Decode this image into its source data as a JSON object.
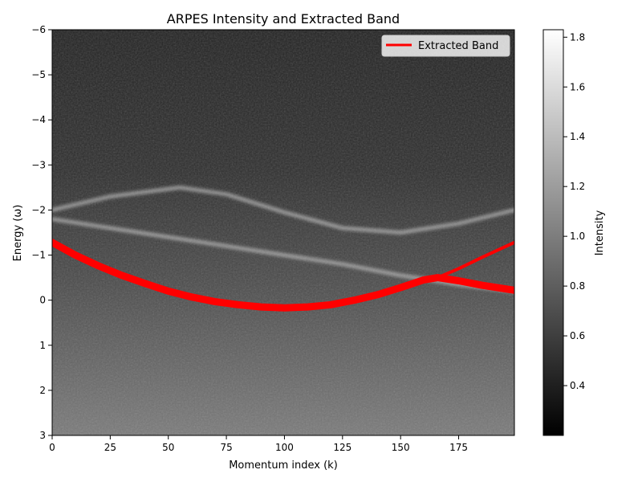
{
  "chart_data": {
    "type": "heatmap",
    "title": "ARPES Intensity and Extracted Band",
    "xlabel": "Momentum index (k)",
    "ylabel": "Energy (ω)",
    "xlim": [
      0,
      199
    ],
    "ylim": [
      -6,
      3
    ],
    "y_inverted": true,
    "x_ticks": [
      0,
      25,
      50,
      75,
      100,
      125,
      150,
      175
    ],
    "x_tick_labels": [
      "0",
      "25",
      "50",
      "75",
      "100",
      "125",
      "150",
      "175"
    ],
    "y_ticks": [
      -6,
      -5,
      -4,
      -3,
      -2,
      -1,
      0,
      1,
      2,
      3
    ],
    "y_tick_labels": [
      "−6",
      "−5",
      "−4",
      "−3",
      "−2",
      "−1",
      "0",
      "1",
      "2",
      "3"
    ],
    "grid": false,
    "colormap": "gray",
    "colorbar": {
      "label": "Intensity",
      "range": [
        0.2,
        1.83
      ],
      "ticks": [
        0.4,
        0.6,
        0.8,
        1.0,
        1.2,
        1.4,
        1.6,
        1.8
      ],
      "tick_labels": [
        "0.4",
        "0.6",
        "0.8",
        "1.0",
        "1.2",
        "1.4",
        "1.6",
        "1.8"
      ]
    },
    "bright_bands": [
      {
        "x": [
          0,
          25,
          55,
          75,
          100,
          125,
          150,
          175,
          199
        ],
        "y": [
          -2.0,
          -2.3,
          -2.5,
          -2.35,
          -1.95,
          -1.6,
          -1.5,
          -1.7,
          -2.0
        ]
      },
      {
        "x": [
          0,
          25,
          50,
          75,
          100,
          125,
          150,
          175,
          199
        ],
        "y": [
          -1.8,
          -1.6,
          -1.4,
          -1.2,
          -1.0,
          -0.8,
          -0.55,
          -0.35,
          -0.2
        ]
      }
    ],
    "series": [
      {
        "name": "Extracted Band",
        "color": "#ff0000",
        "x": [
          0,
          10,
          20,
          30,
          40,
          50,
          60,
          70,
          80,
          90,
          100,
          110,
          120,
          130,
          140,
          150,
          160,
          166,
          175,
          185,
          199
        ],
        "y": [
          -1.28,
          -1.0,
          -0.76,
          -0.55,
          -0.37,
          -0.2,
          -0.07,
          0.03,
          0.1,
          0.15,
          0.17,
          0.15,
          0.1,
          0.0,
          -0.12,
          -0.28,
          -0.45,
          -0.5,
          -0.43,
          -0.33,
          -0.22
        ]
      },
      {
        "name": "",
        "color": "#ff0000",
        "x": [
          166,
          175,
          185,
          199
        ],
        "y": [
          -0.5,
          -0.7,
          -0.95,
          -1.28
        ]
      }
    ],
    "legend": {
      "position": "top-right",
      "entries": [
        "Extracted Band"
      ]
    }
  }
}
